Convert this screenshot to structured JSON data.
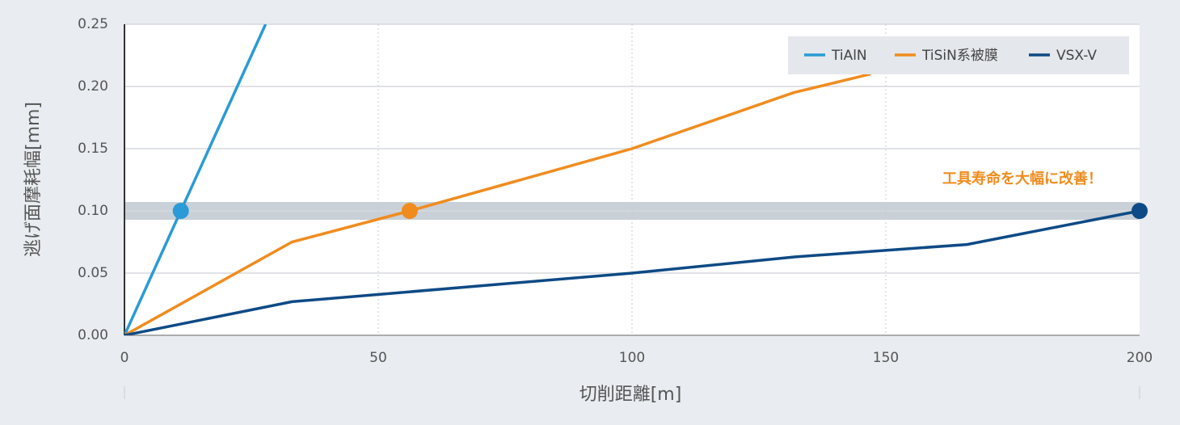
{
  "chart_data": {
    "type": "line",
    "xlabel": "切削距離[m]",
    "ylabel": "逃げ面摩耗幅[mm]",
    "annotation": "工具寿命を大幅に改善！",
    "annotation_color": "#f08c1e",
    "highlight_value": 0.1,
    "xlim": [
      0,
      200
    ],
    "xticks": [
      0,
      50,
      100,
      150,
      200
    ],
    "ylim": [
      0,
      0.25
    ],
    "yticks": [
      {
        "value": 0,
        "label": "0.00"
      },
      0.05,
      {
        "value": 0.1,
        "label": "0.10"
      },
      0.15,
      {
        "value": 0.2,
        "label": "0.20"
      },
      0.25
    ],
    "grid": true,
    "legend": "top-right",
    "series": [
      {
        "name": "TiAlN",
        "color": "#2a9bd6",
        "x": [
          0,
          11.1,
          27.8
        ],
        "values": [
          0,
          0.1,
          0.25
        ],
        "markers": [
          1
        ]
      },
      {
        "name": "TiSiN系被膜",
        "color": "#f08c1e",
        "x": [
          0,
          33,
          56.2,
          100,
          131.8,
          147
        ],
        "values": [
          0,
          0.075,
          0.1,
          0.15,
          0.195,
          0.21
        ],
        "markers": [
          2
        ]
      },
      {
        "name": "VSX-V",
        "color": "#0e4a85",
        "x": [
          0,
          33,
          100,
          132,
          166,
          200
        ],
        "values": [
          0,
          0.027,
          0.05,
          0.063,
          0.073,
          0.1
        ],
        "markers": [
          5
        ]
      }
    ]
  }
}
